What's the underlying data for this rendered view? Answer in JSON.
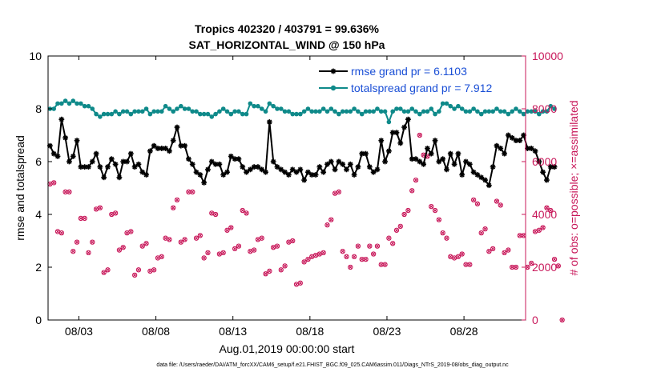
{
  "chart_data": {
    "type": "line",
    "title": [
      "Tropics 402320 / 403791 = 99.636%",
      "SAT_HORIZONTAL_WIND @ 150 hPa"
    ],
    "xlabel": "Aug.01,2019 00:00:00 start",
    "ylabel": "rmse and totalspread",
    "ylabel_right": "# of obs: o=possible; ×=assimilated",
    "footer": "data file: /Users/raeder/DAI/ATM_forcXX/CAM6_setup/f.e21.FHIST_BGC.f09_025.CAM6assim.011/Diags_NTrS_2019-08/obs_diag_output.nc",
    "xlim": [
      1,
      32
    ],
    "ylim": [
      0,
      10
    ],
    "ylim_right": [
      0,
      10000
    ],
    "xtick_values": [
      3,
      8,
      13,
      18,
      23,
      28
    ],
    "xtick_labels": [
      "08/03",
      "08/08",
      "08/13",
      "08/18",
      "08/23",
      "08/28"
    ],
    "ytick_labels": [
      "0",
      "2",
      "4",
      "6",
      "8",
      "10"
    ],
    "ytick_right_labels": [
      "0",
      "2000",
      "4000",
      "6000",
      "8000",
      "10000"
    ],
    "colors": {
      "rmse": "#000000",
      "spread": "#0f8a8a",
      "obs": "#c8185a",
      "legend_text": "#1a4fd6"
    },
    "series": [
      {
        "name": "rmse grand pr = 6.1103",
        "color": "#000000",
        "marker": "star",
        "x_start": 1.125,
        "x_step": 0.25,
        "values": [
          6.6,
          6.3,
          6.2,
          7.6,
          6.9,
          6.0,
          6.2,
          6.8,
          5.8,
          5.8,
          5.8,
          6.0,
          6.3,
          5.8,
          5.4,
          5.8,
          6.1,
          5.9,
          5.4,
          6.0,
          6.0,
          6.3,
          5.8,
          5.9,
          5.6,
          5.5,
          6.4,
          6.6,
          6.5,
          6.5,
          6.5,
          6.4,
          6.8,
          7.3,
          6.6,
          6.6,
          6.1,
          5.9,
          5.6,
          5.5,
          5.2,
          5.7,
          6.0,
          5.9,
          5.9,
          5.5,
          5.6,
          6.2,
          6.1,
          6.1,
          5.8,
          5.6,
          5.7,
          5.8,
          5.8,
          5.7,
          5.6,
          7.5,
          6.0,
          5.8,
          5.7,
          5.6,
          5.5,
          5.7,
          5.6,
          5.7,
          5.3,
          5.6,
          5.5,
          5.5,
          5.8,
          5.6,
          5.9,
          6.0,
          5.7,
          6.0,
          5.9,
          5.7,
          5.9,
          5.5,
          5.8,
          6.3,
          6.3,
          5.8,
          5.6,
          5.7,
          6.8,
          6.0,
          6.4,
          7.1,
          7.1,
          6.7,
          7.3,
          7.6,
          6.1,
          6.1,
          6.0,
          5.9,
          6.5,
          6.3,
          6.8,
          6.0,
          6.1,
          5.7,
          6.3,
          5.9,
          6.3,
          5.5,
          6.0,
          5.9,
          5.6,
          5.5,
          5.4,
          5.3,
          5.1,
          5.8,
          6.6,
          6.5,
          6.3,
          7.0,
          6.9,
          6.8,
          6.8,
          7.0,
          6.5,
          6.5,
          6.4,
          6.0,
          5.6,
          5.3,
          5.8,
          5.8
        ]
      },
      {
        "name": "totalspread grand pr = 7.912",
        "color": "#0f8a8a",
        "marker": "circle",
        "x_start": 1.125,
        "x_step": 0.25,
        "values": [
          8.0,
          8.0,
          8.2,
          8.2,
          8.3,
          8.2,
          8.3,
          8.2,
          8.2,
          8.1,
          8.1,
          8.0,
          7.8,
          7.7,
          7.8,
          7.8,
          7.8,
          7.9,
          7.8,
          7.9,
          7.9,
          7.8,
          7.9,
          7.9,
          7.9,
          8.0,
          7.8,
          7.9,
          7.9,
          7.9,
          8.1,
          8.0,
          7.9,
          8.0,
          8.1,
          8.0,
          8.0,
          7.9,
          7.9,
          7.8,
          7.8,
          7.8,
          7.7,
          7.8,
          7.9,
          8.0,
          7.9,
          7.8,
          7.9,
          7.9,
          7.8,
          7.8,
          8.2,
          8.1,
          8.1,
          8.0,
          7.9,
          8.2,
          8.1,
          8.0,
          8.0,
          7.9,
          7.9,
          7.8,
          7.8,
          7.8,
          7.9,
          8.0,
          7.9,
          7.9,
          7.9,
          8.0,
          7.9,
          8.0,
          7.9,
          7.8,
          7.9,
          7.9,
          7.9,
          8.0,
          7.9,
          7.8,
          7.9,
          7.9,
          7.9,
          8.0,
          7.9,
          7.9,
          7.5,
          7.9,
          8.0,
          8.0,
          7.9,
          7.9,
          8.0,
          7.9,
          7.8,
          7.9,
          7.9,
          8.0,
          7.8,
          7.9,
          8.2,
          8.2,
          8.1,
          8.0,
          8.1,
          8.0,
          7.9,
          7.9,
          8.0,
          7.9,
          7.8,
          7.9,
          7.9,
          7.9,
          8.0,
          7.9,
          7.9,
          7.8,
          7.9,
          8.0,
          7.9,
          7.8,
          7.9,
          7.9,
          7.9,
          7.8,
          7.9,
          7.9,
          8.1,
          8.0
        ]
      }
    ],
    "obs_series": {
      "name": "# of obs possible / assimilated",
      "color": "#c8185a",
      "x_start": 1.125,
      "x_step": 0.25,
      "values": [
        5150,
        5200,
        3350,
        3300,
        4850,
        4850,
        2600,
        2950,
        3850,
        3850,
        2550,
        2950,
        4200,
        4250,
        1800,
        1900,
        4000,
        4050,
        2650,
        2750,
        3300,
        3350,
        1700,
        1900,
        2800,
        2900,
        1850,
        1900,
        2350,
        2400,
        3100,
        3050,
        4250,
        4550,
        2950,
        3050,
        4850,
        4850,
        3100,
        3200,
        2350,
        2550,
        4050,
        4000,
        2500,
        2550,
        3400,
        3500,
        2700,
        2800,
        4150,
        4050,
        2600,
        2650,
        3050,
        3100,
        1750,
        1850,
        2750,
        2800,
        1900,
        2050,
        2950,
        3000,
        1350,
        1400,
        2200,
        2300,
        2400,
        2450,
        2500,
        2550,
        3600,
        3800,
        4800,
        4850,
        2600,
        2400,
        2000,
        2400,
        2800,
        2300,
        2300,
        2800,
        2500,
        2800,
        2100,
        2100,
        3100,
        2900,
        3400,
        3550,
        4000,
        4150,
        4900,
        5300,
        7000,
        6250,
        6200,
        4300,
        4150,
        3800,
        3300,
        3100,
        2400,
        2350,
        2400,
        2500,
        2100,
        2100,
        4550,
        4400,
        3300,
        3450,
        2600,
        2700,
        4500,
        4350,
        2550,
        2650,
        2000,
        2000,
        3200,
        3200,
        2000,
        2150,
        3350,
        3400,
        3500,
        4250,
        4150,
        2300,
        2050,
        0
      ]
    }
  }
}
